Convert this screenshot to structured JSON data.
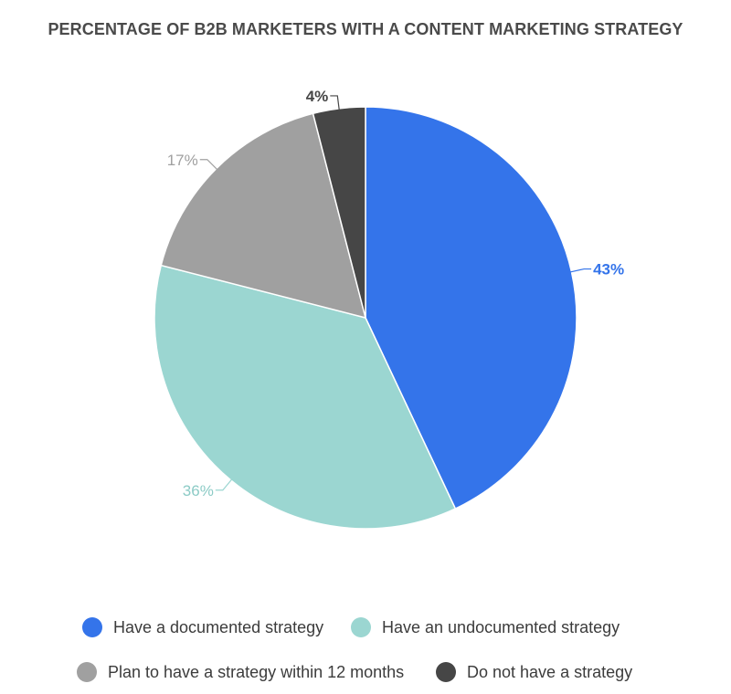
{
  "chart_data": {
    "type": "pie",
    "title": "PERCENTAGE OF B2B MARKETERS WITH A CONTENT MARKETING STRATEGY",
    "slices": [
      {
        "label": "Have a documented strategy",
        "value": 43,
        "display": "43%",
        "color": "#3474ea"
      },
      {
        "label": "Have an undocumented strategy",
        "value": 36,
        "display": "36%",
        "color": "#9bd6d1"
      },
      {
        "label": "Plan to have a strategy within 12 months",
        "value": 17,
        "display": "17%",
        "color": "#a0a0a0"
      },
      {
        "label": "Do not have a strategy",
        "value": 4,
        "display": "4%",
        "color": "#464646"
      }
    ],
    "legend_position": "bottom"
  }
}
